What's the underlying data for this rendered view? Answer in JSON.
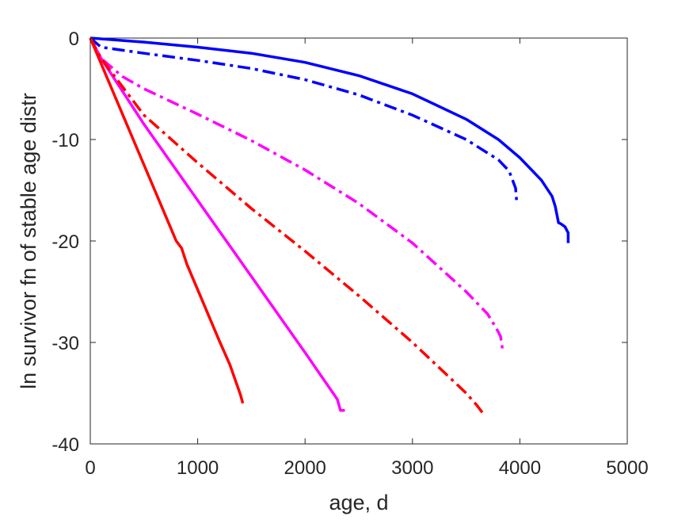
{
  "chart_data": {
    "type": "line",
    "title": "",
    "xlabel": "age, d",
    "ylabel": "ln survivor fn of stable age distr",
    "xlim": [
      0,
      5000
    ],
    "ylim": [
      -40,
      0
    ],
    "xticks": [
      0,
      1000,
      2000,
      3000,
      4000,
      5000
    ],
    "yticks": [
      0,
      -10,
      -20,
      -30,
      -40
    ],
    "xtick_labels": [
      "0",
      "1000",
      "2000",
      "3000",
      "4000",
      "5000"
    ],
    "ytick_labels": [
      "0",
      "-10",
      "-20",
      "-30",
      "-40"
    ],
    "grid": false,
    "legend": "none",
    "series": [
      {
        "color": "#0000ff",
        "style": "solid",
        "x": [
          0,
          500,
          1000,
          1500,
          2000,
          2500,
          3000,
          3500,
          3800,
          4000,
          4200,
          4300,
          4330,
          4360,
          4380,
          4420,
          4450,
          4450
        ],
        "y": [
          0,
          -0.4,
          -0.9,
          -1.5,
          -2.4,
          -3.7,
          -5.5,
          -8.0,
          -10.0,
          -11.8,
          -14.0,
          -15.6,
          -16.6,
          -18.2,
          -18.3,
          -18.6,
          -19.2,
          -20.2
        ]
      },
      {
        "color": "#0000ff",
        "style": "dashdot",
        "x": [
          0,
          100,
          500,
          1000,
          1500,
          2000,
          2500,
          3000,
          3500,
          3800,
          3900,
          3960,
          3970
        ],
        "y": [
          0,
          -0.9,
          -1.5,
          -2.2,
          -3.0,
          -4.1,
          -5.6,
          -7.6,
          -10.0,
          -12.0,
          -13.1,
          -14.8,
          -16.1
        ]
      },
      {
        "color": "#ff00ff",
        "style": "solid",
        "x": [
          0,
          100,
          500,
          1000,
          1500,
          2000,
          2300,
          2330,
          2370
        ],
        "y": [
          0,
          -2.0,
          -8.5,
          -16.0,
          -23.5,
          -31.0,
          -35.6,
          -36.7,
          -36.7
        ]
      },
      {
        "color": "#ff00ff",
        "style": "dashdot",
        "x": [
          0,
          100,
          300,
          500,
          1000,
          1500,
          2000,
          2500,
          3000,
          3500,
          3700,
          3780,
          3820,
          3840
        ],
        "y": [
          0,
          -2.0,
          -3.8,
          -5.0,
          -7.5,
          -10.1,
          -13.0,
          -16.3,
          -20.2,
          -25.0,
          -27.2,
          -28.6,
          -29.4,
          -30.8
        ]
      },
      {
        "color": "#ff0000",
        "style": "solid",
        "x": [
          0,
          200,
          400,
          600,
          800,
          850,
          900,
          1000,
          1200,
          1300,
          1400,
          1420
        ],
        "y": [
          0,
          -5.0,
          -10.0,
          -15.0,
          -20.0,
          -20.7,
          -22.3,
          -24.8,
          -29.8,
          -32.2,
          -35.2,
          -36.0
        ]
      },
      {
        "color": "#ff0000",
        "style": "dashdot",
        "x": [
          0,
          100,
          500,
          1000,
          1500,
          2000,
          2500,
          3000,
          3300,
          3500,
          3600,
          3650
        ],
        "y": [
          0,
          -2.0,
          -7.6,
          -12.3,
          -16.8,
          -21.0,
          -25.4,
          -30.0,
          -33.0,
          -35.0,
          -36.2,
          -36.9
        ]
      }
    ]
  }
}
